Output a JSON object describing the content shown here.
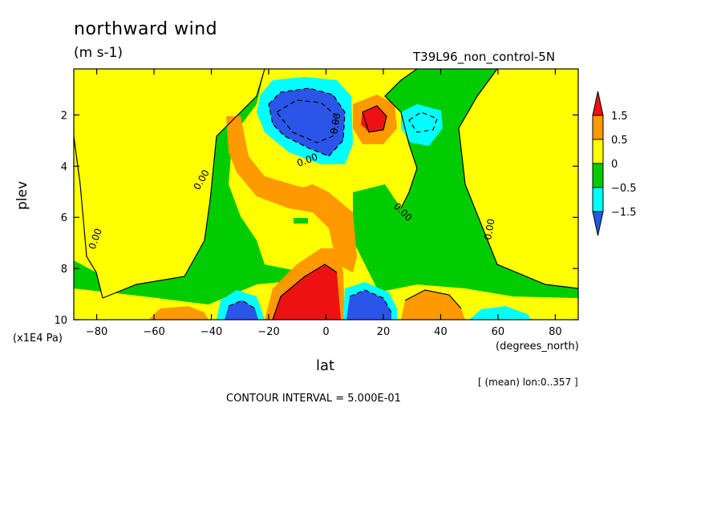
{
  "title": "northward wind",
  "units": "(m s-1)",
  "dataset": "T39L96_non_control-5N",
  "colors": {
    "below_-1.5": "#1e5be0",
    "-1.5_-0.5": "#00ffff",
    "-0.5_0": "#00cc00",
    "0_0.5": "#ffff00",
    "0.5_1.5": "#ff9900",
    "above_1.5": "#ee1111",
    "strong_neg": "#2a55e8"
  },
  "chart_data": {
    "type": "heatmap",
    "title": "northward wind",
    "units": "(m s-1)",
    "xlabel": "lat",
    "x_units": "(degrees_north)",
    "ylabel": "plev",
    "y_units": "(x1E4 Pa)",
    "xlim": [
      -88,
      88
    ],
    "ylim": [
      10,
      0.2
    ],
    "y_reversed": true,
    "x_ticks": [
      -80,
      -60,
      -40,
      -20,
      0,
      20,
      40,
      60,
      80
    ],
    "x_tick_labels": [
      "−80",
      "−60",
      "−40",
      "−20",
      "0",
      "20",
      "40",
      "60",
      "80"
    ],
    "y_ticks": [
      2,
      4,
      6,
      8,
      10
    ],
    "y_tick_labels": [
      "2",
      "4",
      "6",
      "8",
      "10"
    ],
    "contour_interval": 0.5,
    "contour_levels": [
      -1.5,
      -0.5,
      0,
      0.5,
      1.5
    ],
    "colorbar_labels": [
      "1.5",
      "0.5",
      "0",
      "−0.5",
      "−1.5"
    ],
    "contour_label": "0.00",
    "averaging_note": "[ (mean) lon:0..357 ]",
    "interval_note": "CONTOUR INTERVAL = 5.000E-01",
    "features": [
      {
        "lat": -2,
        "plev": 2.3,
        "value": -2.5
      },
      {
        "lat": 15,
        "plev": 2.0,
        "value": 1.8
      },
      {
        "lat": 35,
        "plev": 2.2,
        "value": -0.8
      },
      {
        "lat": -5,
        "plev": 9.6,
        "value": 2.5
      },
      {
        "lat": -30,
        "plev": 9.8,
        "value": -1.8
      },
      {
        "lat": 15,
        "plev": 9.6,
        "value": -1.8
      },
      {
        "lat": 35,
        "plev": 9.6,
        "value": 1.2
      },
      {
        "lat": -50,
        "plev": 9.8,
        "value": 0.8
      },
      {
        "lat": 60,
        "plev": 9.9,
        "value": -1.2
      }
    ]
  }
}
